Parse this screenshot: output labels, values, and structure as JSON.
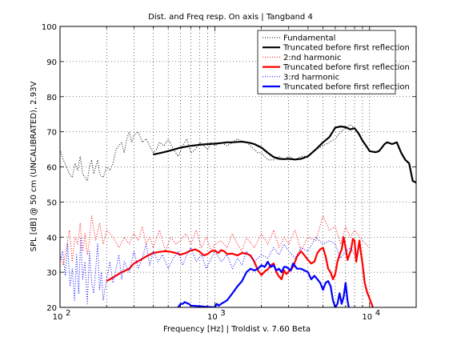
{
  "chart_data": {
    "type": "line",
    "title": "Dist. and Freq resp. On axis | Tangband 4",
    "xlabel": "Frequency [Hz] | Troldist v. 7.60 Beta",
    "ylabel": "SPL [dB] @ 50 cm (UNCALIBRATED), 2.93V",
    "xscale": "log",
    "xlim": [
      100,
      20000
    ],
    "ylim": [
      20,
      100
    ],
    "grid": true,
    "legend_position": "top-right",
    "x_ticks": [
      {
        "value": 100,
        "base": "10",
        "exp": "2"
      },
      {
        "value": 1000,
        "base": "10",
        "exp": "3"
      },
      {
        "value": 10000,
        "base": "10",
        "exp": "4"
      }
    ],
    "y_ticks": [
      "20",
      "30",
      "40",
      "50",
      "60",
      "70",
      "80",
      "90",
      "100"
    ],
    "series": [
      {
        "name": "Fundamental",
        "color": "#000000",
        "style": "dotted",
        "x": [
          100,
          105,
          110,
          115,
          120,
          125,
          130,
          135,
          140,
          145,
          150,
          155,
          160,
          165,
          170,
          175,
          180,
          190,
          200,
          210,
          220,
          230,
          240,
          250,
          260,
          270,
          280,
          290,
          300,
          320,
          340,
          360,
          380,
          400,
          420,
          440,
          470,
          500,
          540,
          580,
          620,
          660,
          700,
          750,
          800,
          850,
          900,
          950,
          1000,
          1100,
          1200,
          1300,
          1400,
          1500,
          1600,
          1700,
          1800,
          1900,
          2000,
          2200,
          2400,
          2600,
          2800,
          3000,
          3300,
          3600,
          4000,
          4500,
          5000,
          5500,
          6000,
          6500,
          7000,
          7500,
          8000
        ],
        "y": [
          65,
          62,
          60,
          58,
          57,
          61,
          59,
          63,
          58,
          57,
          56,
          60,
          62,
          58,
          60,
          62,
          58,
          57,
          60,
          59,
          61,
          65,
          66,
          67,
          64,
          68,
          70,
          67,
          69,
          70,
          67,
          68,
          66,
          64,
          65,
          67,
          66,
          68,
          65,
          63,
          66,
          68,
          64,
          65,
          67,
          66,
          65,
          67,
          66,
          67,
          66,
          67,
          68,
          67,
          67,
          66,
          65,
          64,
          64,
          62,
          62,
          63,
          62,
          63,
          62,
          63,
          63,
          65,
          66,
          67,
          68,
          70,
          71,
          72,
          71
        ]
      },
      {
        "name": "Truncated before first reflection",
        "color": "#000000",
        "style": "solid",
        "x": [
          400,
          450,
          500,
          600,
          700,
          800,
          900,
          1000,
          1100,
          1200,
          1300,
          1400,
          1500,
          1600,
          1700,
          1800,
          2000,
          2200,
          2400,
          2600,
          2800,
          3000,
          3300,
          3600,
          4000,
          4500,
          5000,
          5500,
          6000,
          6500,
          7000,
          7500,
          8000,
          8500,
          9000,
          9500,
          10000,
          10500,
          11000,
          11500,
          12000,
          12500,
          13000,
          14000,
          15000,
          16000,
          17000,
          18000,
          19000,
          20000
        ],
        "y": [
          63.5,
          64,
          64.5,
          65.5,
          66,
          66.3,
          66.5,
          66.6,
          66.8,
          67,
          67,
          67.1,
          67.2,
          67,
          66.8,
          66.5,
          65.5,
          64,
          62.8,
          62.3,
          62.2,
          62.3,
          62.1,
          62.3,
          63,
          65,
          67,
          68.5,
          71.2,
          71.5,
          71.3,
          70.7,
          71,
          69.5,
          67.5,
          66,
          64.5,
          64.3,
          64.2,
          64.5,
          65.5,
          66.5,
          67,
          66.5,
          67,
          64,
          62,
          61,
          56,
          55.5
        ]
      },
      {
        "name": "2:nd harmonic",
        "color": "#ff0000",
        "style": "dotted",
        "x": [
          100,
          105,
          110,
          115,
          120,
          125,
          130,
          135,
          140,
          145,
          150,
          155,
          160,
          170,
          180,
          190,
          200,
          220,
          240,
          260,
          280,
          300,
          320,
          340,
          360,
          380,
          400,
          440,
          480,
          520,
          560,
          600,
          650,
          700,
          760,
          820,
          880,
          950,
          1000,
          1100,
          1200,
          1300,
          1400,
          1500,
          1600,
          1800,
          2000,
          2200,
          2400,
          2600,
          2800,
          3000,
          3300,
          3600,
          4000,
          4500,
          5000,
          5500,
          6000,
          6500,
          7000,
          7500,
          8000,
          9000,
          10000
        ],
        "y": [
          35,
          32,
          37,
          42,
          33,
          40,
          38,
          44,
          36,
          41,
          35,
          39,
          46,
          39,
          44,
          38,
          42,
          40,
          37,
          40,
          38,
          41,
          39,
          43,
          38,
          40,
          37,
          42,
          36,
          40,
          38,
          39,
          41,
          38,
          42,
          37,
          40,
          36,
          38,
          39,
          37,
          41,
          38,
          36,
          40,
          37,
          41,
          38,
          42,
          37,
          40,
          38,
          42,
          36,
          40,
          39,
          46,
          42,
          43,
          38,
          43,
          40,
          42,
          39,
          37
        ]
      },
      {
        "name": "Truncated before first reflection",
        "color": "#ff0000",
        "style": "solid",
        "x": [
          200,
          220,
          250,
          280,
          300,
          330,
          360,
          400,
          440,
          480,
          520,
          560,
          600,
          650,
          700,
          750,
          800,
          850,
          900,
          950,
          1000,
          1050,
          1100,
          1150,
          1200,
          1300,
          1400,
          1500,
          1600,
          1700,
          1800,
          1900,
          2000,
          2100,
          2200,
          2300,
          2400,
          2500,
          2600,
          2700,
          2800,
          2900,
          3000,
          3200,
          3400,
          3600,
          3800,
          4000,
          4200,
          4400,
          4600,
          4800,
          5000,
          5200,
          5400,
          5600,
          5800,
          6000,
          6200,
          6400,
          6600,
          6800,
          7000,
          7200,
          7400,
          7600,
          7800,
          8000,
          8200,
          8400,
          8600,
          8800,
          9000,
          9300,
          9600,
          10000,
          10500,
          11000
        ],
        "y": [
          27.5,
          28.5,
          30,
          31,
          32.5,
          33.5,
          34.5,
          35.5,
          35.8,
          36,
          35.8,
          35.5,
          35,
          35.5,
          36.2,
          36.5,
          35.8,
          34.8,
          35.2,
          36,
          36.2,
          35.5,
          36.3,
          36,
          35.2,
          35.3,
          34.8,
          35.5,
          35.3,
          34.8,
          33,
          30.5,
          29.2,
          30.2,
          30.8,
          32,
          32.5,
          30,
          28.8,
          28,
          30.5,
          29.5,
          30.2,
          31.5,
          34.5,
          36,
          34.8,
          33.5,
          32.5,
          33,
          35.5,
          36.5,
          37,
          34.5,
          31,
          30,
          28,
          29.5,
          33,
          35,
          36.5,
          40,
          37,
          33.5,
          35,
          36.5,
          39.5,
          39,
          33,
          36,
          39,
          35.5,
          32.5,
          27,
          24.5,
          22.5,
          20,
          19
        ]
      },
      {
        "name": "3:rd harmonic",
        "color": "#0000ff",
        "style": "dotted",
        "x": [
          100,
          104,
          108,
          112,
          116,
          120,
          124,
          128,
          132,
          136,
          140,
          145,
          150,
          155,
          160,
          165,
          170,
          175,
          180,
          185,
          190,
          200,
          210,
          220,
          230,
          240,
          250,
          260,
          280,
          300,
          320,
          340,
          360,
          380,
          400,
          430,
          460,
          500,
          540,
          580,
          620,
          660,
          700,
          760,
          820,
          880,
          950,
          1000,
          1100,
          1200,
          1300,
          1400,
          1500,
          1600,
          1800,
          2000,
          2200,
          2400,
          2600,
          2800,
          3000,
          3300,
          3600,
          4000,
          4500,
          5000,
          5500,
          6000,
          6500,
          7000,
          7500,
          8000
        ],
        "y": [
          33,
          36,
          29,
          38,
          26,
          31,
          22,
          35,
          24,
          40,
          28,
          33,
          21,
          36,
          27,
          24,
          31,
          38,
          25,
          30,
          22,
          28,
          33,
          27,
          31,
          35,
          28,
          33,
          30,
          36,
          31,
          34,
          38,
          32,
          36,
          33,
          35,
          31,
          34,
          36,
          32,
          35,
          37,
          33,
          35,
          31,
          34,
          36,
          33,
          35,
          31,
          34,
          32,
          36,
          33,
          35,
          34,
          37,
          35,
          38,
          36,
          34,
          37,
          36,
          40,
          38,
          39,
          38,
          34,
          36,
          37,
          35
        ]
      },
      {
        "name": "Truncated before first reflection",
        "color": "#0000ff",
        "style": "solid",
        "x": [
          580,
          600,
          620,
          640,
          660,
          680,
          700,
          1000,
          1030,
          1060,
          1100,
          1200,
          1300,
          1400,
          1500,
          1600,
          1700,
          1800,
          1900,
          2000,
          2100,
          2200,
          2300,
          2400,
          2500,
          2600,
          2700,
          2800,
          2900,
          3000,
          3100,
          3200,
          3400,
          3600,
          3800,
          4000,
          4200,
          4400,
          4600,
          4800,
          5000,
          5200,
          5400,
          5600,
          5800,
          6000,
          6200,
          6400,
          6600,
          6800,
          7000,
          7200,
          7400
        ],
        "y": [
          20,
          21,
          21,
          21.5,
          21.2,
          21,
          20.5,
          20,
          21,
          20.5,
          21,
          22,
          24,
          26,
          27.5,
          30,
          31,
          30.5,
          31,
          32,
          31.5,
          33,
          31.5,
          32,
          30.5,
          31,
          30,
          31.5,
          31.5,
          31,
          30.5,
          32.5,
          31,
          31,
          30.5,
          30,
          28,
          29,
          28,
          27,
          25,
          27,
          27.5,
          26,
          22,
          20,
          21,
          24,
          21,
          23,
          27,
          22,
          19
        ]
      }
    ]
  }
}
